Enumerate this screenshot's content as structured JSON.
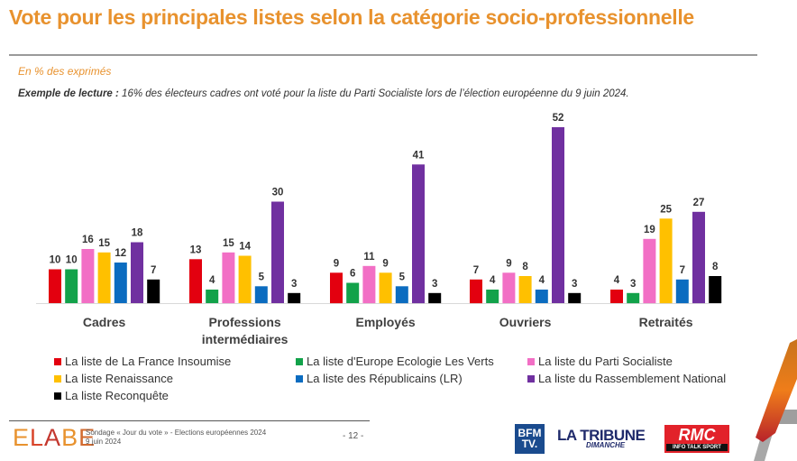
{
  "header": {
    "title": "Vote pour les principales listes selon la catégorie socio-professionnelle",
    "subtitle": "En % des exprimés",
    "reading_label": "Exemple de lecture :",
    "reading_text": " 16% des électeurs cadres ont voté pour la liste du Parti Socialiste lors de l’élection européenne du 9 juin 2024."
  },
  "chart_data": {
    "type": "bar",
    "title": "Vote pour les principales listes selon la catégorie socio-professionnelle",
    "subtitle": "En % des exprimés",
    "xlabel": "",
    "ylabel": "",
    "ylim": [
      0,
      55
    ],
    "grid": false,
    "legend_position": "bottom",
    "categories": [
      "Cadres",
      "Professions intermédiaires",
      "Employés",
      "Ouvriers",
      "Retraités"
    ],
    "category_lines": [
      [
        "Cadres"
      ],
      [
        "Professions",
        "intermédiaires"
      ],
      [
        "Employés"
      ],
      [
        "Ouvriers"
      ],
      [
        "Retraités"
      ]
    ],
    "series": [
      {
        "name": "La liste de La France Insoumise",
        "color": "#e3000f",
        "values": [
          10,
          13,
          9,
          7,
          4
        ]
      },
      {
        "name": "La liste d'Europe Ecologie Les Verts",
        "color": "#12a24a",
        "values": [
          10,
          4,
          6,
          4,
          3
        ]
      },
      {
        "name": "La liste du Parti Socialiste",
        "color": "#f26fc5",
        "values": [
          16,
          15,
          11,
          9,
          19
        ]
      },
      {
        "name": "La liste Renaissance",
        "color": "#ffc000",
        "values": [
          15,
          14,
          9,
          8,
          25
        ]
      },
      {
        "name": "La liste des Républicains (LR)",
        "color": "#0b6cc0",
        "values": [
          12,
          5,
          5,
          4,
          7
        ]
      },
      {
        "name": "La liste du Rassemblement National",
        "color": "#7030a0",
        "values": [
          18,
          30,
          41,
          52,
          27
        ]
      },
      {
        "name": "La liste Reconquête",
        "color": "#000000",
        "values": [
          7,
          3,
          3,
          3,
          8
        ]
      }
    ]
  },
  "footer": {
    "brand": "ELABE",
    "brand_colors": [
      "#e8922e",
      "#d9452b",
      "#c4382f",
      "#e8922e",
      "#d26a2f"
    ],
    "survey_line1": "Sondage « Jour du vote » - Elections européennes 2024",
    "survey_line2": "9 juin 2024",
    "page": "- 12 -",
    "logos": {
      "bfm": [
        "BFM",
        "TV."
      ],
      "tribune": "LA TRIBUNE",
      "tribune_sub": "DIMANCHE",
      "rmc": "RMC",
      "rmc_sub": "INFO TALK SPORT"
    }
  }
}
